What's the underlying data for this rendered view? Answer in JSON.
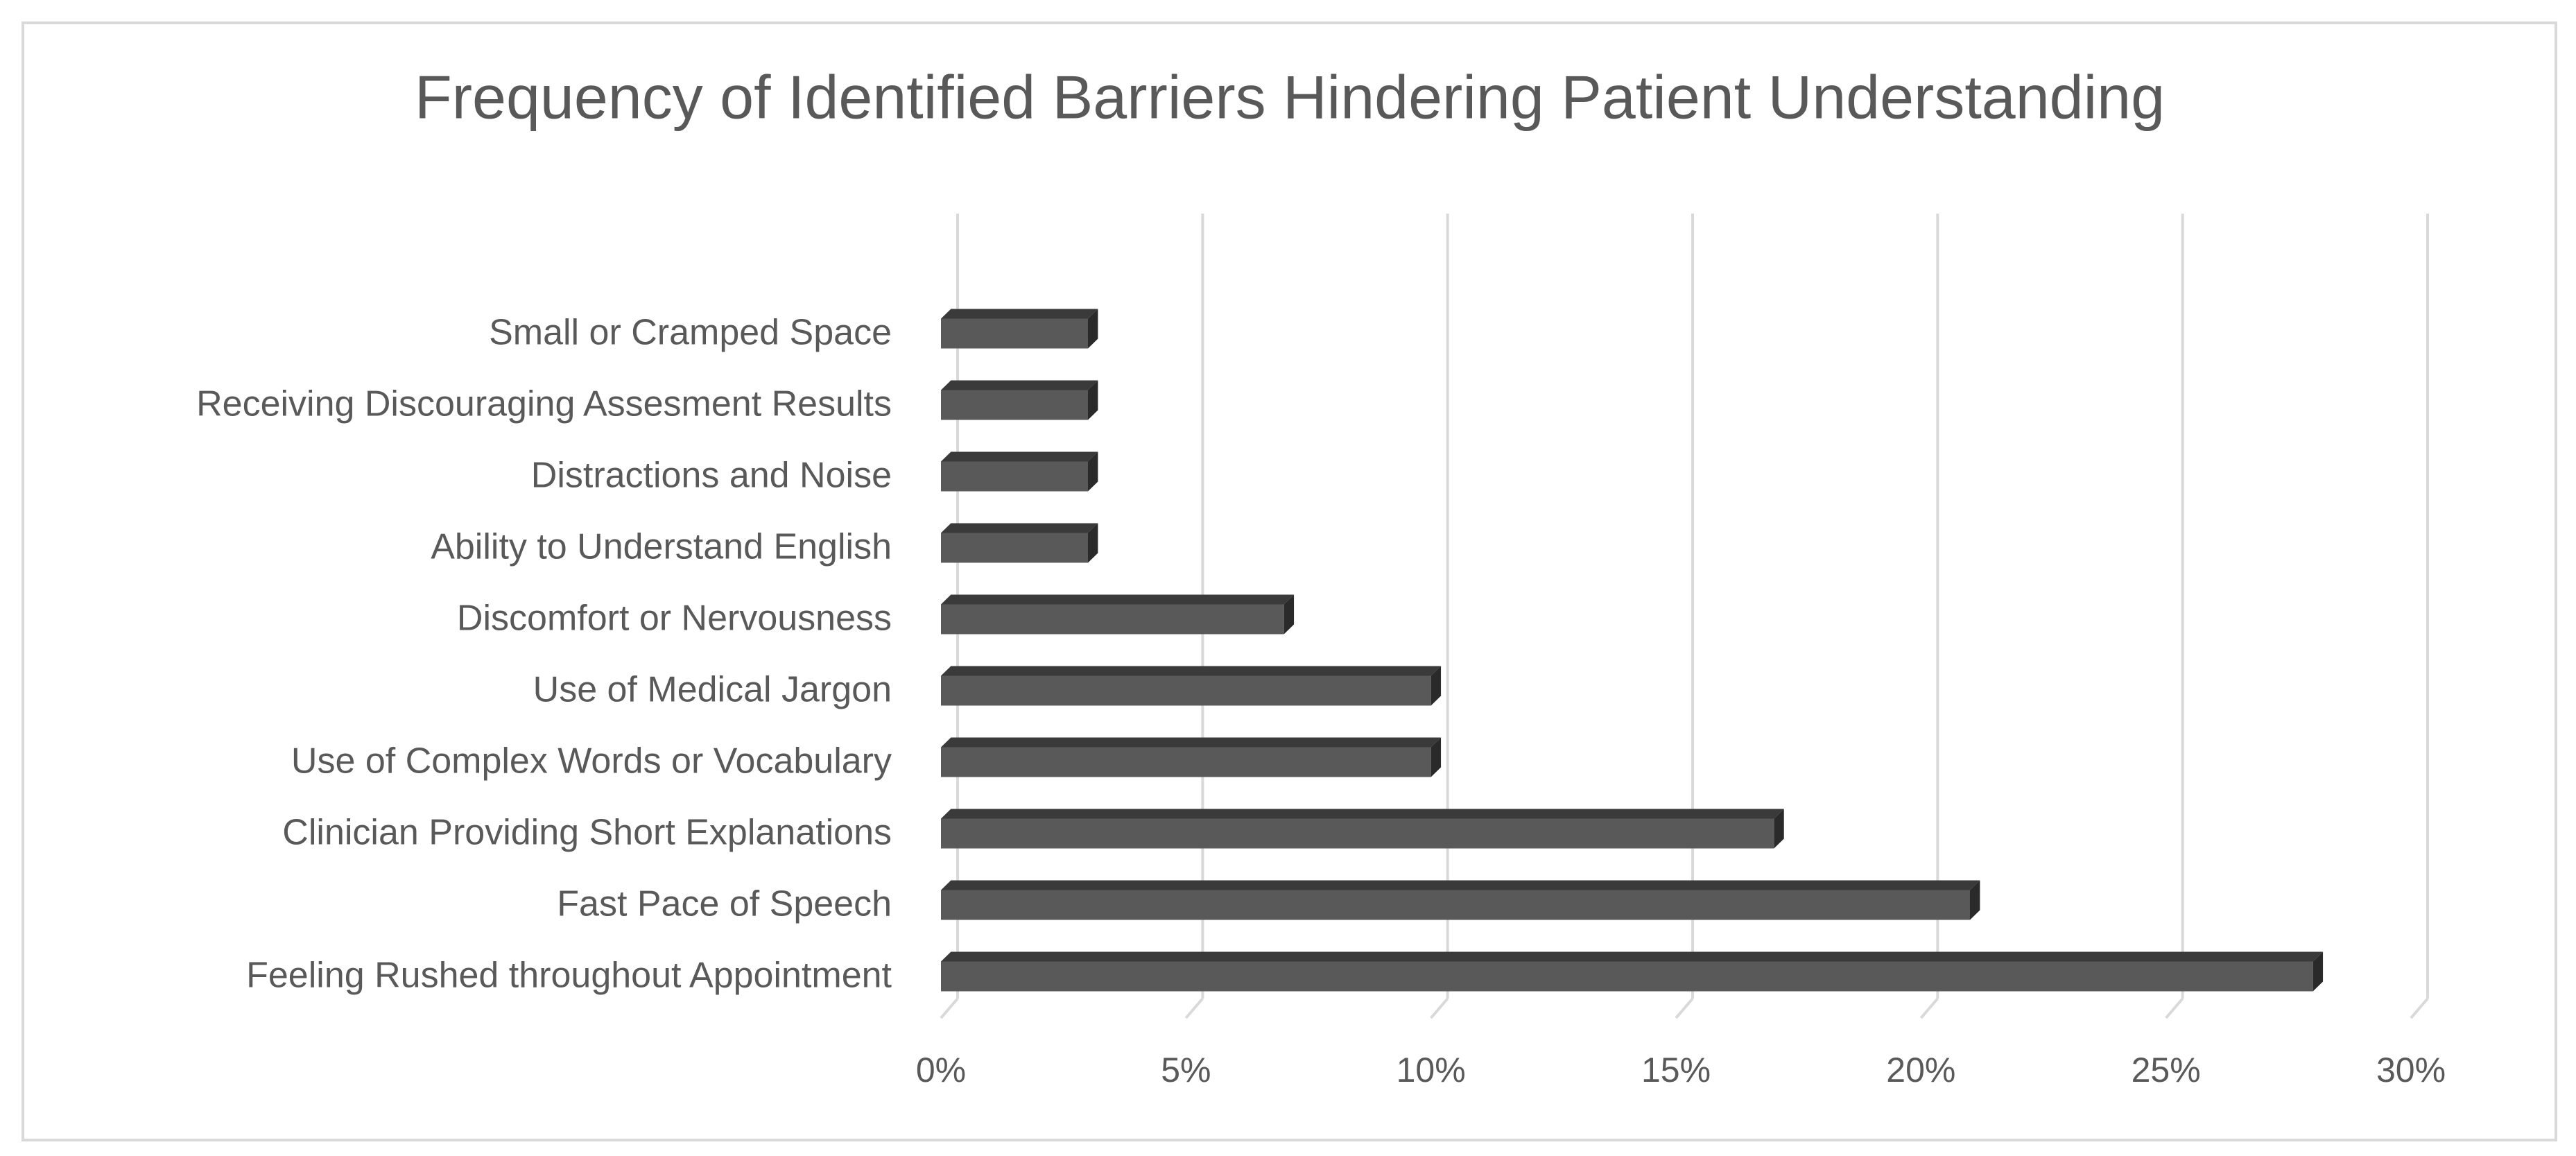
{
  "chart_data": {
    "type": "bar",
    "orientation": "horizontal",
    "title": "Frequency of Identified Barriers Hindering Patient Understanding",
    "categories": [
      "Small or Cramped Space",
      "Receiving Discouraging Assesment Results",
      "Distractions and Noise",
      "Ability to Understand English",
      "Discomfort or Nervousness",
      "Use of Medical Jargon",
      "Use of Complex Words or Vocabulary",
      "Clinician Providing Short Explanations",
      "Fast Pace of Speech",
      "Feeling Rushed throughout Appointment"
    ],
    "values": [
      3,
      3,
      3,
      3,
      7,
      10,
      10,
      17,
      21,
      28
    ],
    "color": "#595959",
    "xlim": [
      0,
      30
    ],
    "xticks": [
      {
        "value": 0,
        "label": "0%"
      },
      {
        "value": 5,
        "label": "5%"
      },
      {
        "value": 10,
        "label": "10%"
      },
      {
        "value": 15,
        "label": "15%"
      },
      {
        "value": 20,
        "label": "20%"
      },
      {
        "value": 25,
        "label": "25%"
      },
      {
        "value": 30,
        "label": "30%"
      }
    ],
    "grid": true
  }
}
